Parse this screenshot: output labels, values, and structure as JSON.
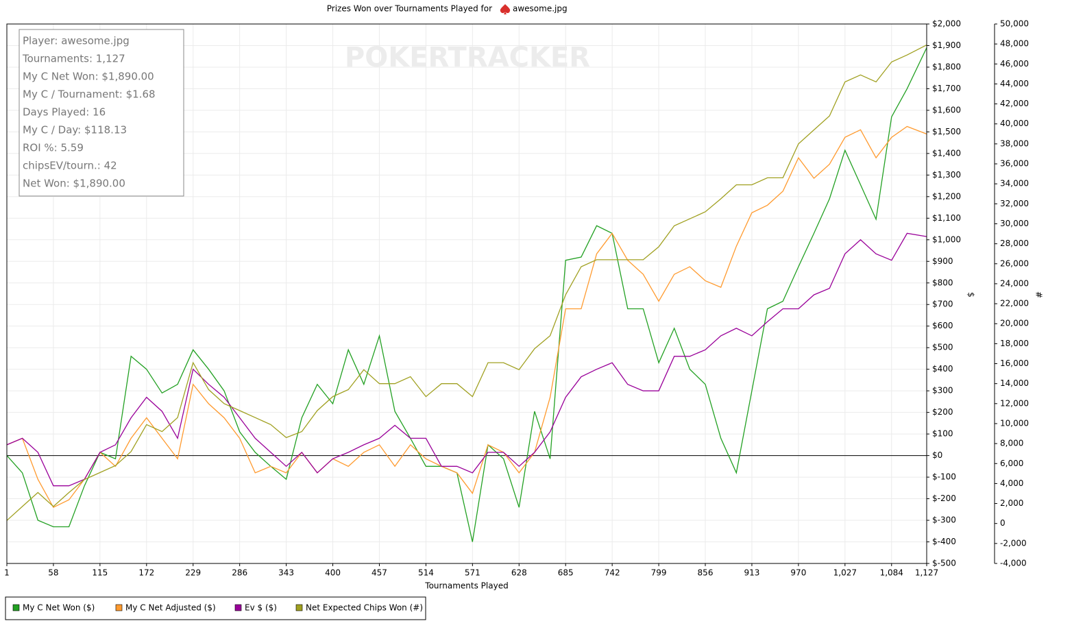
{
  "chart_data": {
    "type": "line",
    "title": "Prizes Won over Tournaments Played for",
    "player": "awesome.jpg",
    "watermark": "POKERTRACKER",
    "x_label": "Tournaments Played",
    "y_label": "$",
    "y2_label": "#",
    "stats": [
      "Player: awesome.jpg",
      "Tournaments: 1,127",
      "My C Net Won: $1,890.00",
      "My C / Tournament: $1.68",
      "Days Played: 16",
      "My C / Day: $118.13",
      "ROI %: 5.59",
      "chipsEV/tourn.: 42",
      "Net Won: $1,890.00"
    ],
    "grid": true,
    "xlim": [
      1,
      1127
    ],
    "xticks": [
      1,
      58,
      115,
      172,
      229,
      286,
      343,
      400,
      457,
      514,
      571,
      628,
      685,
      742,
      799,
      856,
      913,
      970,
      {
        "value": 1027,
        "label": "1,027"
      },
      {
        "value": 1084,
        "label": "1,084"
      },
      {
        "value": 1127,
        "label": "1,127"
      }
    ],
    "ylim": [
      -500,
      2000
    ],
    "yticks": [
      {
        "value": 2000,
        "label": "$2,000"
      },
      {
        "value": 1900,
        "label": "$1,900"
      },
      {
        "value": 1800,
        "label": "$1,800"
      },
      {
        "value": 1700,
        "label": "$1,700"
      },
      {
        "value": 1600,
        "label": "$1,600"
      },
      {
        "value": 1500,
        "label": "$1,500"
      },
      {
        "value": 1400,
        "label": "$1,400"
      },
      {
        "value": 1300,
        "label": "$1,300"
      },
      {
        "value": 1200,
        "label": "$1,200"
      },
      {
        "value": 1100,
        "label": "$1,100"
      },
      {
        "value": 1000,
        "label": "$1,000"
      },
      {
        "value": 900,
        "label": "$900"
      },
      {
        "value": 800,
        "label": "$800"
      },
      {
        "value": 700,
        "label": "$700"
      },
      {
        "value": 600,
        "label": "$600"
      },
      {
        "value": 500,
        "label": "$500"
      },
      {
        "value": 400,
        "label": "$400"
      },
      {
        "value": 300,
        "label": "$300"
      },
      {
        "value": 200,
        "label": "$200"
      },
      {
        "value": 100,
        "label": "$100"
      },
      {
        "value": 0,
        "label": "$0"
      },
      {
        "value": -100,
        "label": "$-100"
      },
      {
        "value": -200,
        "label": "$-200"
      },
      {
        "value": -300,
        "label": "$-300"
      },
      {
        "value": -400,
        "label": "$-400"
      },
      {
        "value": -500,
        "label": "$-500"
      }
    ],
    "y2lim": [
      -4000,
      50000
    ],
    "y2ticks": [
      {
        "value": 50000,
        "label": "50,000"
      },
      {
        "value": 48000,
        "label": "48,000"
      },
      {
        "value": 46000,
        "label": "46,000"
      },
      {
        "value": 44000,
        "label": "44,000"
      },
      {
        "value": 42000,
        "label": "42,000"
      },
      {
        "value": 40000,
        "label": "40,000"
      },
      {
        "value": 38000,
        "label": "38,000"
      },
      {
        "value": 36000,
        "label": "36,000"
      },
      {
        "value": 34000,
        "label": "34,000"
      },
      {
        "value": 32000,
        "label": "32,000"
      },
      {
        "value": 30000,
        "label": "30,000"
      },
      {
        "value": 28000,
        "label": "28,000"
      },
      {
        "value": 26000,
        "label": "26,000"
      },
      {
        "value": 24000,
        "label": "24,000"
      },
      {
        "value": 22000,
        "label": "22,000"
      },
      {
        "value": 20000,
        "label": "20,000"
      },
      {
        "value": 18000,
        "label": "18,000"
      },
      {
        "value": 16000,
        "label": "16,000"
      },
      {
        "value": 14000,
        "label": "14,000"
      },
      {
        "value": 12000,
        "label": "12,000"
      },
      {
        "value": 10000,
        "label": "10,000"
      },
      {
        "value": 8000,
        "label": "8,000"
      },
      {
        "value": 6000,
        "label": "6,000"
      },
      {
        "value": 4000,
        "label": "4,000"
      },
      {
        "value": 2000,
        "label": "2,000"
      },
      0,
      {
        "value": -2000,
        "label": "-2,000"
      },
      {
        "value": -4000,
        "label": "-4,000"
      }
    ],
    "x": [
      1,
      20,
      39,
      58,
      77,
      96,
      115,
      134,
      153,
      172,
      191,
      210,
      229,
      248,
      267,
      286,
      305,
      324,
      343,
      362,
      381,
      400,
      419,
      438,
      457,
      476,
      495,
      514,
      533,
      552,
      571,
      590,
      609,
      628,
      647,
      666,
      685,
      704,
      723,
      742,
      761,
      780,
      799,
      818,
      837,
      856,
      875,
      894,
      913,
      932,
      951,
      970,
      989,
      1008,
      1027,
      1046,
      1065,
      1084,
      1103,
      1127
    ],
    "series": [
      {
        "name": "My C Net Won ($)",
        "color": "#22a022",
        "values": [
          0,
          -80,
          -300,
          -330,
          -330,
          -140,
          15,
          -15,
          460,
          400,
          290,
          330,
          490,
          400,
          300,
          110,
          15,
          -50,
          -110,
          175,
          330,
          240,
          490,
          330,
          555,
          205,
          80,
          -50,
          -50,
          -80,
          -400,
          50,
          -15,
          -240,
          205,
          -15,
          905,
          920,
          1065,
          1030,
          680,
          680,
          430,
          590,
          400,
          330,
          80,
          -80,
          300,
          680,
          715,
          875,
          1030,
          1190,
          1415,
          1255,
          1095,
          1570,
          1700,
          1890
        ]
      },
      {
        "name": "My C Net Adjusted ($)",
        "color": "#ff9a2e",
        "values": [
          50,
          80,
          -110,
          -240,
          -205,
          -110,
          15,
          -50,
          80,
          175,
          80,
          -15,
          330,
          240,
          175,
          80,
          -80,
          -50,
          -80,
          15,
          -80,
          -15,
          -50,
          15,
          50,
          -50,
          50,
          -15,
          -50,
          -80,
          -175,
          50,
          15,
          -80,
          15,
          270,
          680,
          680,
          935,
          1030,
          905,
          840,
          715,
          840,
          875,
          810,
          780,
          970,
          1125,
          1160,
          1225,
          1380,
          1285,
          1350,
          1475,
          1510,
          1380,
          1475,
          1525,
          1490
        ]
      },
      {
        "name": "Ev $ ($)",
        "color": "#990099",
        "values": [
          50,
          80,
          15,
          -140,
          -140,
          -110,
          15,
          50,
          175,
          270,
          205,
          80,
          400,
          330,
          270,
          175,
          80,
          15,
          -50,
          15,
          -80,
          -15,
          15,
          50,
          80,
          140,
          80,
          80,
          -50,
          -50,
          -80,
          15,
          15,
          -50,
          15,
          110,
          270,
          365,
          400,
          430,
          330,
          300,
          300,
          460,
          460,
          490,
          555,
          590,
          555,
          620,
          680,
          680,
          745,
          775,
          935,
          1000,
          935,
          905,
          1030,
          1015
        ]
      },
      {
        "name": "Net Expected Chips Won (#)",
        "color": "#a0a020",
        "axis": "y2",
        "values": [
          300,
          1700,
          3100,
          1700,
          3100,
          4400,
          5100,
          5800,
          7200,
          9900,
          9200,
          10600,
          16100,
          13400,
          12000,
          11300,
          10600,
          9900,
          8600,
          9200,
          11300,
          12700,
          13400,
          15400,
          14000,
          14000,
          14700,
          12700,
          14000,
          14000,
          12700,
          16100,
          16100,
          15400,
          17500,
          18800,
          22900,
          25700,
          26400,
          26400,
          26400,
          26400,
          27700,
          29800,
          30500,
          31200,
          32500,
          33900,
          33900,
          34600,
          34600,
          38000,
          39400,
          40800,
          44200,
          44900,
          44200,
          46200,
          46900,
          47900
        ]
      }
    ]
  }
}
